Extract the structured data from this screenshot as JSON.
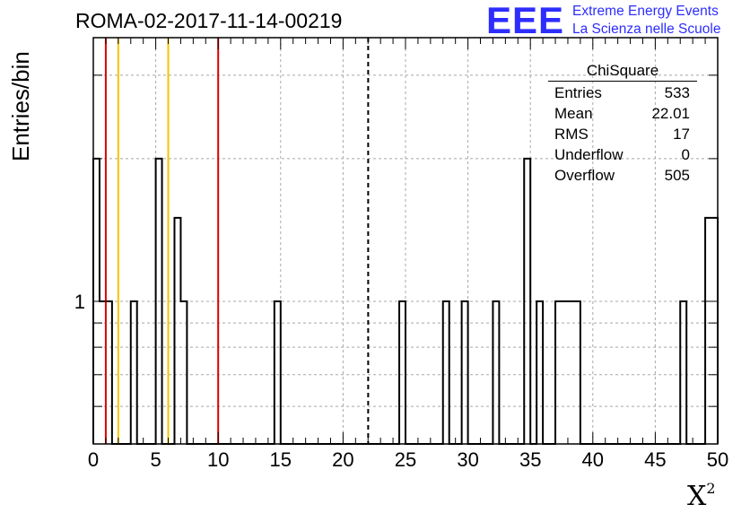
{
  "title": "ROMA-02-2017-11-14-00219",
  "logo": {
    "text": "EEE",
    "line1": "Extreme Energy Events",
    "line2": "La Scienza nelle Scuole"
  },
  "stats": {
    "title": "ChiSquare",
    "rows": [
      {
        "label": "Entries",
        "value": "533"
      },
      {
        "label": "Mean",
        "value": "22.01"
      },
      {
        "label": "RMS",
        "value": "17"
      },
      {
        "label": "Underflow",
        "value": "0"
      },
      {
        "label": "Overflow",
        "value": "505"
      }
    ]
  },
  "chart_data": {
    "type": "histogram",
    "xlabel": "X",
    "xlabel_superscript": "2",
    "ylabel": "Entries/bin",
    "xlim": [
      0,
      50
    ],
    "y_scale": "log",
    "ylim": [
      0.5,
      3.6
    ],
    "bin_width": 0.5,
    "grid": true,
    "x_ticks": [
      0,
      5,
      10,
      15,
      20,
      25,
      30,
      35,
      40,
      45,
      50
    ],
    "y_tick_labels": [
      {
        "value": 1,
        "label": "1"
      }
    ],
    "bins": [
      {
        "x": 0.0,
        "count": 2
      },
      {
        "x": 0.5,
        "count": 1
      },
      {
        "x": 1.0,
        "count": 1
      },
      {
        "x": 3.0,
        "count": 1
      },
      {
        "x": 5.0,
        "count": 2
      },
      {
        "x": 6.5,
        "count": 1.5
      },
      {
        "x": 7.0,
        "count": 1
      },
      {
        "x": 14.5,
        "count": 1
      },
      {
        "x": 24.5,
        "count": 1
      },
      {
        "x": 28.0,
        "count": 1
      },
      {
        "x": 29.5,
        "count": 1
      },
      {
        "x": 32.0,
        "count": 1
      },
      {
        "x": 34.5,
        "count": 2
      },
      {
        "x": 35.5,
        "count": 1
      },
      {
        "x": 37.0,
        "count": 1
      },
      {
        "x": 37.5,
        "count": 1
      },
      {
        "x": 38.0,
        "count": 1
      },
      {
        "x": 38.5,
        "count": 1
      },
      {
        "x": 47.0,
        "count": 1
      },
      {
        "x": 49.0,
        "count": 1.5
      },
      {
        "x": 49.5,
        "count": 1.5
      }
    ],
    "vertical_lines": [
      {
        "x": 1.0,
        "color": "#dd0000",
        "style": "solid"
      },
      {
        "x": 2.0,
        "color": "#f5c400",
        "style": "solid"
      },
      {
        "x": 6.0,
        "color": "#f5c400",
        "style": "solid"
      },
      {
        "x": 10.0,
        "color": "#dd0000",
        "style": "solid"
      },
      {
        "x": 22.01,
        "color": "#000000",
        "style": "dashed"
      }
    ]
  }
}
